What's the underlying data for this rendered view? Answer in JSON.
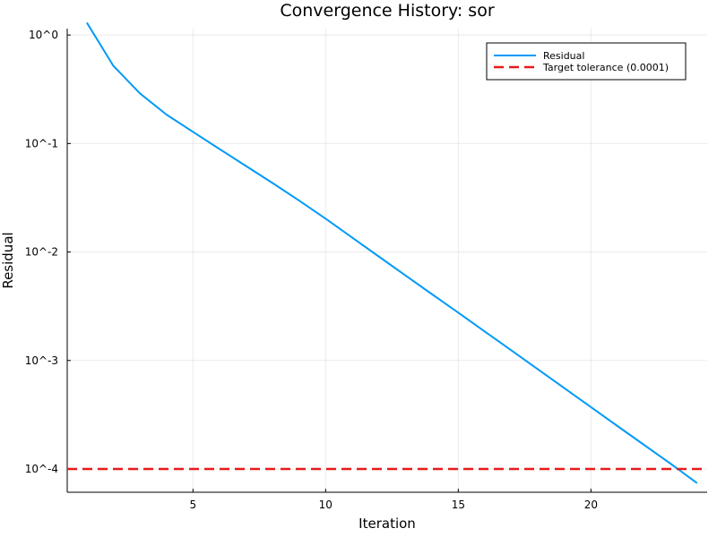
{
  "chart_data": {
    "type": "line",
    "title": "Convergence History: sor",
    "xlabel": "Iteration",
    "ylabel": "Residual",
    "xlim": [
      0.26,
      24.38
    ],
    "ylim": [
      6.1e-05,
      1.145
    ],
    "yscale": "log",
    "grid": true,
    "legend_position": "top-right",
    "x_ticks": [
      5,
      10,
      15,
      20
    ],
    "x_tick_labels": [
      "5",
      "10",
      "15",
      "20"
    ],
    "y_ticks": [
      1,
      0.1,
      0.01,
      0.001,
      0.0001
    ],
    "y_tick_labels": [
      "10^0",
      "10^-1",
      "10^-2",
      "10^-3",
      "10^-4"
    ],
    "series": [
      {
        "name": "Residual",
        "kind": "line",
        "color": "#009af9",
        "x": [
          1,
          2,
          3,
          4,
          5,
          6,
          7,
          8,
          9,
          10,
          11,
          12,
          13,
          14,
          15,
          16,
          17,
          18,
          19,
          20,
          21,
          22,
          23,
          24
        ],
        "y": [
          1.3,
          0.52,
          0.29,
          0.185,
          0.128,
          0.089,
          0.062,
          0.0432,
          0.0298,
          0.0203,
          0.0136,
          0.0091,
          0.0061,
          0.0041,
          0.00276,
          0.00185,
          0.00124,
          0.00083,
          0.000556,
          0.000372,
          0.000249,
          0.000167,
          0.000112,
          7.4e-05
        ]
      },
      {
        "name": "Target tolerance (0.0001)",
        "kind": "hline",
        "color": "#e81a1a",
        "y": 0.0001
      }
    ]
  }
}
